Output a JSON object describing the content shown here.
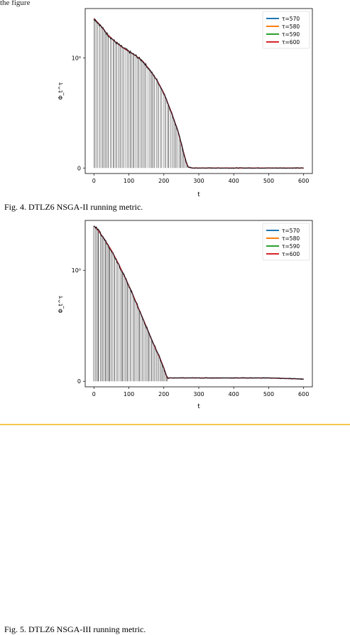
{
  "top_fragment": "the figure",
  "figures": [
    {
      "caption": "Fig. 4.  DTLZ6 NSGA-II running metric.",
      "chart_data": {
        "type": "line",
        "title": "",
        "xlabel": "t",
        "ylabel": "Φ_t^τ",
        "x_ticks": [
          0,
          100,
          200,
          300,
          400,
          500,
          600
        ],
        "y_ticks": [
          "0",
          "10⁰"
        ],
        "xlim": [
          -25,
          625
        ],
        "ylim": [
          -0.05,
          1.45
        ],
        "y_scale": "symlog",
        "grid": false,
        "legend_position": "top-right",
        "series": [
          {
            "name": "τ=570",
            "color": "#1f77b4"
          },
          {
            "name": "τ=580",
            "color": "#ff7f0e"
          },
          {
            "name": "τ=590",
            "color": "#2ca02c"
          },
          {
            "name": "τ=600",
            "color": "#d62728"
          }
        ],
        "curve": {
          "x": [
            0,
            20,
            40,
            60,
            80,
            100,
            120,
            140,
            160,
            180,
            200,
            220,
            240,
            255,
            265,
            270,
            280,
            300,
            400,
            500,
            600
          ],
          "y": [
            1.36,
            1.29,
            1.21,
            1.15,
            1.1,
            1.06,
            1.02,
            0.97,
            0.89,
            0.8,
            0.68,
            0.52,
            0.34,
            0.16,
            0.04,
            0.01,
            0.0,
            0.0,
            0.0,
            0.0,
            0.0
          ]
        },
        "sample_lines": {
          "count": 65,
          "x_range": [
            0,
            265
          ]
        }
      }
    },
    {
      "caption": "Fig. 5.  DTLZ6 NSGA-III running metric.",
      "chart_data": {
        "type": "line",
        "title": "",
        "xlabel": "t",
        "ylabel": "Φ_t^τ",
        "x_ticks": [
          0,
          100,
          200,
          300,
          400,
          500,
          600
        ],
        "y_ticks": [
          "0",
          "10⁰"
        ],
        "xlim": [
          -25,
          625
        ],
        "ylim": [
          -0.05,
          1.45
        ],
        "y_scale": "symlog",
        "grid": false,
        "legend_position": "top-right",
        "series": [
          {
            "name": "τ=570",
            "color": "#1f77b4"
          },
          {
            "name": "τ=580",
            "color": "#ff7f0e"
          },
          {
            "name": "τ=590",
            "color": "#2ca02c"
          },
          {
            "name": "τ=600",
            "color": "#d62728"
          }
        ],
        "curve": {
          "x": [
            0,
            10,
            30,
            50,
            70,
            90,
            110,
            130,
            150,
            170,
            190,
            200,
            205,
            210,
            250,
            300,
            400,
            500,
            600
          ],
          "y": [
            1.4,
            1.37,
            1.28,
            1.18,
            1.06,
            0.93,
            0.79,
            0.64,
            0.49,
            0.34,
            0.2,
            0.12,
            0.07,
            0.03,
            0.03,
            0.03,
            0.03,
            0.03,
            0.02
          ]
        },
        "sample_lines": {
          "count": 60,
          "x_range": [
            0,
            210
          ]
        }
      }
    }
  ]
}
